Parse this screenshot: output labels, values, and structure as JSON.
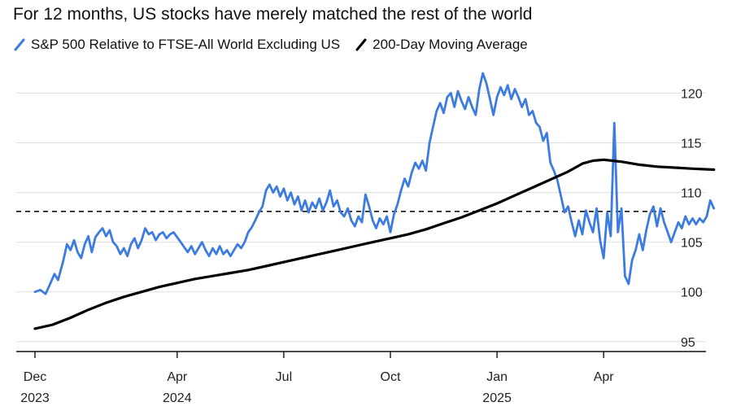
{
  "chart_data": {
    "type": "line",
    "title": "For 12 months, US stocks have merely matched the rest of the world",
    "xlabel": "",
    "ylabel": "",
    "ylim": [
      94,
      122
    ],
    "yticks": [
      95,
      100,
      105,
      110,
      115,
      120
    ],
    "x_range": [
      0,
      18.1
    ],
    "x_ticks": [
      {
        "x": 0,
        "line1": "Dec",
        "line2": "2023"
      },
      {
        "x": 4,
        "line1": "Apr",
        "line2": "2024"
      },
      {
        "x": 7,
        "line1": "Jul",
        "line2": ""
      },
      {
        "x": 10,
        "line1": "Oct",
        "line2": ""
      },
      {
        "x": 13,
        "line1": "Jan",
        "line2": "2025"
      },
      {
        "x": 16,
        "line1": "Apr",
        "line2": ""
      }
    ],
    "reference_line": {
      "y": 108.1,
      "style": "dashed"
    },
    "series": [
      {
        "name": "S&P 500 Relative to FTSE-All World Excluding US",
        "color": "#3c7be0",
        "points": [
          [
            0,
            100.0
          ],
          [
            0.15,
            100.2
          ],
          [
            0.3,
            99.8
          ],
          [
            0.45,
            101.0
          ],
          [
            0.55,
            101.8
          ],
          [
            0.65,
            101.2
          ],
          [
            0.8,
            103.2
          ],
          [
            0.9,
            104.8
          ],
          [
            1.0,
            104.2
          ],
          [
            1.1,
            105.2
          ],
          [
            1.2,
            104.0
          ],
          [
            1.3,
            103.4
          ],
          [
            1.4,
            104.8
          ],
          [
            1.5,
            105.6
          ],
          [
            1.6,
            104.0
          ],
          [
            1.7,
            105.5
          ],
          [
            1.8,
            106.0
          ],
          [
            1.9,
            106.4
          ],
          [
            2.0,
            105.6
          ],
          [
            2.1,
            106.2
          ],
          [
            2.2,
            105.0
          ],
          [
            2.3,
            104.6
          ],
          [
            2.4,
            103.8
          ],
          [
            2.5,
            104.4
          ],
          [
            2.6,
            103.6
          ],
          [
            2.7,
            104.8
          ],
          [
            2.8,
            105.4
          ],
          [
            2.9,
            104.4
          ],
          [
            3.0,
            105.2
          ],
          [
            3.1,
            106.4
          ],
          [
            3.2,
            105.8
          ],
          [
            3.3,
            106.0
          ],
          [
            3.4,
            105.2
          ],
          [
            3.5,
            105.8
          ],
          [
            3.6,
            106.0
          ],
          [
            3.7,
            105.4
          ],
          [
            3.8,
            105.8
          ],
          [
            3.9,
            106.0
          ],
          [
            4.0,
            105.5
          ],
          [
            4.1,
            105.0
          ],
          [
            4.2,
            104.5
          ],
          [
            4.3,
            104.0
          ],
          [
            4.4,
            104.6
          ],
          [
            4.5,
            103.8
          ],
          [
            4.6,
            104.4
          ],
          [
            4.7,
            105.0
          ],
          [
            4.8,
            104.2
          ],
          [
            4.9,
            103.6
          ],
          [
            5.0,
            104.4
          ],
          [
            5.1,
            103.8
          ],
          [
            5.2,
            104.6
          ],
          [
            5.3,
            103.8
          ],
          [
            5.4,
            104.2
          ],
          [
            5.5,
            103.6
          ],
          [
            5.6,
            104.2
          ],
          [
            5.7,
            104.8
          ],
          [
            5.8,
            104.4
          ],
          [
            5.9,
            105.0
          ],
          [
            6.0,
            106.0
          ],
          [
            6.1,
            106.5
          ],
          [
            6.2,
            107.2
          ],
          [
            6.3,
            108.0
          ],
          [
            6.4,
            108.6
          ],
          [
            6.5,
            110.2
          ],
          [
            6.6,
            110.8
          ],
          [
            6.7,
            110.0
          ],
          [
            6.8,
            110.6
          ],
          [
            6.9,
            109.6
          ],
          [
            7.0,
            110.4
          ],
          [
            7.1,
            109.2
          ],
          [
            7.2,
            110.0
          ],
          [
            7.3,
            108.8
          ],
          [
            7.4,
            109.6
          ],
          [
            7.5,
            108.2
          ],
          [
            7.6,
            109.2
          ],
          [
            7.7,
            108.0
          ],
          [
            7.8,
            109.0
          ],
          [
            7.9,
            108.4
          ],
          [
            8.0,
            109.4
          ],
          [
            8.1,
            108.2
          ],
          [
            8.2,
            109.0
          ],
          [
            8.3,
            110.2
          ],
          [
            8.4,
            108.6
          ],
          [
            8.5,
            109.2
          ],
          [
            8.6,
            108.0
          ],
          [
            8.7,
            107.6
          ],
          [
            8.8,
            108.4
          ],
          [
            8.9,
            107.2
          ],
          [
            9.0,
            106.6
          ],
          [
            9.1,
            107.6
          ],
          [
            9.2,
            107.0
          ],
          [
            9.3,
            109.8
          ],
          [
            9.4,
            108.6
          ],
          [
            9.5,
            107.2
          ],
          [
            9.6,
            106.4
          ],
          [
            9.7,
            107.4
          ],
          [
            9.8,
            106.8
          ],
          [
            9.9,
            107.6
          ],
          [
            10.0,
            106.0
          ],
          [
            10.1,
            107.8
          ],
          [
            10.2,
            108.8
          ],
          [
            10.3,
            110.2
          ],
          [
            10.4,
            111.4
          ],
          [
            10.5,
            110.6
          ],
          [
            10.6,
            112.0
          ],
          [
            10.7,
            113.0
          ],
          [
            10.8,
            112.4
          ],
          [
            10.9,
            113.2
          ],
          [
            11.0,
            112.2
          ],
          [
            11.1,
            115.0
          ],
          [
            11.2,
            116.6
          ],
          [
            11.3,
            118.2
          ],
          [
            11.4,
            119.0
          ],
          [
            11.5,
            118.0
          ],
          [
            11.6,
            119.6
          ],
          [
            11.7,
            120.0
          ],
          [
            11.8,
            118.6
          ],
          [
            11.9,
            120.2
          ],
          [
            12.0,
            119.2
          ],
          [
            12.1,
            118.4
          ],
          [
            12.2,
            119.6
          ],
          [
            12.3,
            118.6
          ],
          [
            12.4,
            117.8
          ],
          [
            12.5,
            120.4
          ],
          [
            12.6,
            122.0
          ],
          [
            12.7,
            121.0
          ],
          [
            12.8,
            119.4
          ],
          [
            12.9,
            117.8
          ],
          [
            13.0,
            119.6
          ],
          [
            13.1,
            120.6
          ],
          [
            13.2,
            119.8
          ],
          [
            13.3,
            120.8
          ],
          [
            13.4,
            119.4
          ],
          [
            13.5,
            120.4
          ],
          [
            13.6,
            119.6
          ],
          [
            13.7,
            118.6
          ],
          [
            13.8,
            119.4
          ],
          [
            13.9,
            117.8
          ],
          [
            14.0,
            118.2
          ],
          [
            14.1,
            117.0
          ],
          [
            14.2,
            116.6
          ],
          [
            14.3,
            115.2
          ],
          [
            14.4,
            116.0
          ],
          [
            14.5,
            113.0
          ],
          [
            14.6,
            112.2
          ],
          [
            14.7,
            111.2
          ],
          [
            14.8,
            109.6
          ],
          [
            14.9,
            108.0
          ],
          [
            15.0,
            108.6
          ],
          [
            15.1,
            107.0
          ],
          [
            15.2,
            105.6
          ],
          [
            15.3,
            107.2
          ],
          [
            15.4,
            105.8
          ],
          [
            15.5,
            108.2
          ],
          [
            15.6,
            107.0
          ],
          [
            15.7,
            106.0
          ],
          [
            15.8,
            108.4
          ],
          [
            15.9,
            105.2
          ],
          [
            16.0,
            103.4
          ],
          [
            16.1,
            108.0
          ],
          [
            16.2,
            105.6
          ],
          [
            16.3,
            117.0
          ],
          [
            16.4,
            106.0
          ],
          [
            16.5,
            108.4
          ],
          [
            16.6,
            101.6
          ],
          [
            16.7,
            100.8
          ],
          [
            16.8,
            103.2
          ],
          [
            16.9,
            104.2
          ],
          [
            17.0,
            105.8
          ],
          [
            17.1,
            104.2
          ],
          [
            17.2,
            106.2
          ],
          [
            17.3,
            107.8
          ],
          [
            17.4,
            108.6
          ],
          [
            17.5,
            106.6
          ],
          [
            17.6,
            108.4
          ],
          [
            17.7,
            107.0
          ],
          [
            17.8,
            106.0
          ],
          [
            17.9,
            105.0
          ],
          [
            18.0,
            106.0
          ],
          [
            18.1,
            107.0
          ],
          [
            18.2,
            106.4
          ],
          [
            18.3,
            107.6
          ],
          [
            18.4,
            106.8
          ],
          [
            18.5,
            107.4
          ],
          [
            18.6,
            106.8
          ],
          [
            18.7,
            107.4
          ],
          [
            18.8,
            107.0
          ],
          [
            18.9,
            107.6
          ],
          [
            19.0,
            109.2
          ],
          [
            19.1,
            108.4
          ]
        ]
      },
      {
        "name": "200-Day Moving Average",
        "color": "#000000",
        "points": [
          [
            0,
            96.3
          ],
          [
            0.5,
            96.7
          ],
          [
            1.0,
            97.4
          ],
          [
            1.5,
            98.2
          ],
          [
            2.0,
            98.9
          ],
          [
            2.5,
            99.5
          ],
          [
            3.0,
            100.0
          ],
          [
            3.5,
            100.5
          ],
          [
            4.0,
            100.9
          ],
          [
            4.5,
            101.3
          ],
          [
            5.0,
            101.6
          ],
          [
            5.5,
            101.9
          ],
          [
            6.0,
            102.2
          ],
          [
            6.5,
            102.6
          ],
          [
            7.0,
            103.0
          ],
          [
            7.5,
            103.4
          ],
          [
            8.0,
            103.8
          ],
          [
            8.5,
            104.2
          ],
          [
            9.0,
            104.6
          ],
          [
            9.5,
            105.0
          ],
          [
            10.0,
            105.4
          ],
          [
            10.5,
            105.8
          ],
          [
            11.0,
            106.3
          ],
          [
            11.5,
            106.9
          ],
          [
            12.0,
            107.5
          ],
          [
            12.5,
            108.2
          ],
          [
            13.0,
            108.9
          ],
          [
            13.5,
            109.7
          ],
          [
            14.0,
            110.5
          ],
          [
            14.5,
            111.3
          ],
          [
            15.0,
            112.1
          ],
          [
            15.4,
            112.9
          ],
          [
            15.7,
            113.2
          ],
          [
            16.0,
            113.3
          ],
          [
            16.5,
            113.1
          ],
          [
            17.0,
            112.8
          ],
          [
            17.5,
            112.6
          ],
          [
            18.0,
            112.5
          ],
          [
            18.5,
            112.4
          ],
          [
            19.1,
            112.3
          ]
        ]
      }
    ]
  }
}
